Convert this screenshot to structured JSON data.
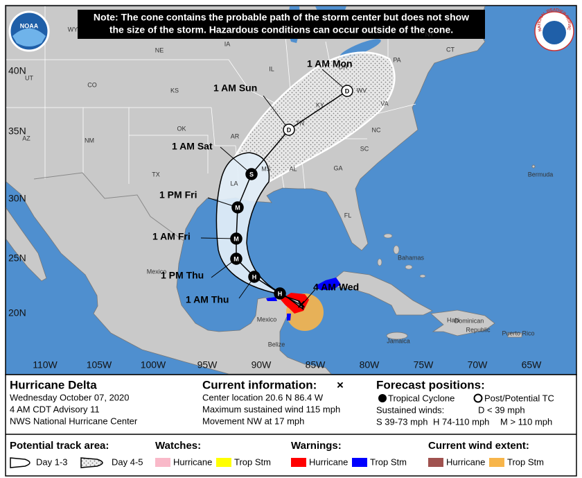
{
  "note": [
    "Note: The cone contains the probable path of the storm center but does not show",
    "the size of the storm. Hazardous conditions can occur outside of the cone."
  ],
  "logos": {
    "left": "NOAA",
    "right": "NATIONAL WEATHER SERVICE"
  },
  "latitudes": [
    "40N",
    "35N",
    "30N",
    "25N",
    "20N"
  ],
  "longitudes": [
    "110W",
    "105W",
    "100W",
    "95W",
    "90W",
    "85W",
    "80W",
    "75W",
    "70W",
    "65W"
  ],
  "places": [
    "WY",
    "NE",
    "IA",
    "IL",
    "OH",
    "PA",
    "NY",
    "CT",
    "UT",
    "CO",
    "KS",
    "KY",
    "WV",
    "VA",
    "TN",
    "NC",
    "OK",
    "AR",
    "SC",
    "NM",
    "AZ",
    "TX",
    "MS",
    "AL",
    "GA",
    "LA",
    "FL",
    "Bermuda",
    "Bahamas",
    "Mexico",
    "Mexico",
    "Belize",
    "Jamaica",
    "Haiti",
    "Dominican",
    "Republic",
    "Puerto Rico"
  ],
  "forecast_points": [
    {
      "time": "1 AM Mon",
      "symbol": "D"
    },
    {
      "time": "1 AM Sun",
      "symbol": "D"
    },
    {
      "time": "1 AM Sat",
      "symbol": "S"
    },
    {
      "time": "1 PM Fri",
      "symbol": "M"
    },
    {
      "time": "1 AM Fri",
      "symbol": "M"
    },
    {
      "time": "1 PM Thu",
      "symbol": "M"
    },
    {
      "time": "1 AM Thu",
      "symbol": "H"
    },
    {
      "time": null,
      "symbol": "H"
    }
  ],
  "current_position": {
    "time": "4 AM Wed",
    "symbol": "×"
  },
  "legend": {
    "storm_name": "Hurricane Delta",
    "storm_lines": [
      "Wednesday October 07, 2020",
      "4 AM CDT Advisory 11",
      "NWS National Hurricane Center"
    ],
    "current_title": "Current information:",
    "current_symbol": "×",
    "current_lines": [
      "Center location 20.6 N 86.4 W",
      "Maximum sustained wind 115 mph",
      "Movement NW at 17 mph"
    ],
    "forecast_title": "Forecast positions:",
    "tropical": "Tropical Cyclone",
    "post_tropical": "Post/Potential TC",
    "sustained": "Sustained winds:",
    "wind_classes": [
      "D < 39 mph",
      "S 39-73 mph",
      "H 74-110 mph",
      "M > 110 mph"
    ],
    "track_title": "Potential track area:",
    "day13": "Day 1-3",
    "day45": "Day 4-5",
    "groups": [
      {
        "title": "Watches:",
        "items": [
          {
            "label": "Hurricane",
            "color": "#f9b9c9"
          },
          {
            "label": "Trop Stm",
            "color": "#ffff00"
          }
        ]
      },
      {
        "title": "Warnings:",
        "items": [
          {
            "label": "Hurricane",
            "color": "#ff0000"
          },
          {
            "label": "Trop Stm",
            "color": "#0000ff"
          }
        ]
      },
      {
        "title": "Current wind extent:",
        "items": [
          {
            "label": "Hurricane",
            "color": "#a0524f"
          },
          {
            "label": "Trop Stm",
            "color": "#f7b54a"
          }
        ]
      }
    ]
  }
}
